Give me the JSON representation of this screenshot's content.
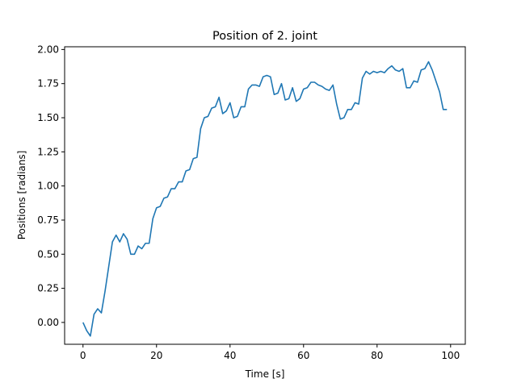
{
  "chart_data": {
    "type": "line",
    "title": "Position of 2. joint",
    "xlabel": "Time [s]",
    "ylabel": "Positions [radians]",
    "xlim": [
      -5,
      104
    ],
    "ylim": [
      -0.16,
      2.02
    ],
    "xticks": [
      0,
      20,
      40,
      60,
      80,
      100
    ],
    "xtick_labels": [
      "0",
      "20",
      "40",
      "60",
      "80",
      "100"
    ],
    "yticks": [
      0,
      0.25,
      0.5,
      0.75,
      1.0,
      1.25,
      1.5,
      1.75,
      2.0
    ],
    "ytick_labels": [
      "0.00",
      "0.25",
      "0.50",
      "0.75",
      "1.00",
      "1.25",
      "1.50",
      "1.75",
      "2.00"
    ],
    "grid": false,
    "line_color": "#1f77b4",
    "series": [
      {
        "x": [
          0,
          1,
          2,
          3,
          4,
          5,
          6,
          7,
          8,
          9,
          10,
          11,
          12,
          13,
          14,
          15,
          16,
          17,
          18,
          19,
          20,
          21,
          22,
          23,
          24,
          25,
          26,
          27,
          28,
          29,
          30,
          31,
          32,
          33,
          34,
          35,
          36,
          37,
          38,
          39,
          40,
          41,
          42,
          43,
          44,
          45,
          46,
          47,
          48,
          49,
          50,
          51,
          52,
          53,
          54,
          55,
          56,
          57,
          58,
          59,
          60,
          61,
          62,
          63,
          64,
          65,
          66,
          67,
          68,
          69,
          70,
          71,
          72,
          73,
          74,
          75,
          76,
          77,
          78,
          79,
          80,
          81,
          82,
          83,
          84,
          85,
          86,
          87,
          88,
          89,
          90,
          91,
          92,
          93,
          94,
          95,
          96,
          97,
          98,
          99
        ],
        "y": [
          0.0,
          -0.06,
          -0.1,
          0.06,
          0.1,
          0.07,
          0.23,
          0.41,
          0.59,
          0.64,
          0.59,
          0.65,
          0.61,
          0.5,
          0.5,
          0.56,
          0.54,
          0.58,
          0.58,
          0.76,
          0.84,
          0.85,
          0.91,
          0.92,
          0.98,
          0.98,
          1.03,
          1.03,
          1.11,
          1.12,
          1.2,
          1.21,
          1.42,
          1.5,
          1.51,
          1.57,
          1.58,
          1.65,
          1.53,
          1.55,
          1.61,
          1.5,
          1.51,
          1.58,
          1.58,
          1.71,
          1.74,
          1.74,
          1.73,
          1.8,
          1.81,
          1.8,
          1.67,
          1.68,
          1.75,
          1.63,
          1.64,
          1.72,
          1.62,
          1.64,
          1.71,
          1.72,
          1.76,
          1.76,
          1.74,
          1.73,
          1.71,
          1.7,
          1.74,
          1.6,
          1.49,
          1.5,
          1.56,
          1.56,
          1.61,
          1.6,
          1.79,
          1.84,
          1.82,
          1.84,
          1.83,
          1.84,
          1.83,
          1.86,
          1.88,
          1.85,
          1.84,
          1.86,
          1.72,
          1.72,
          1.77,
          1.76,
          1.85,
          1.86,
          1.91,
          1.85,
          1.77,
          1.69,
          1.56,
          1.56
        ]
      }
    ]
  }
}
